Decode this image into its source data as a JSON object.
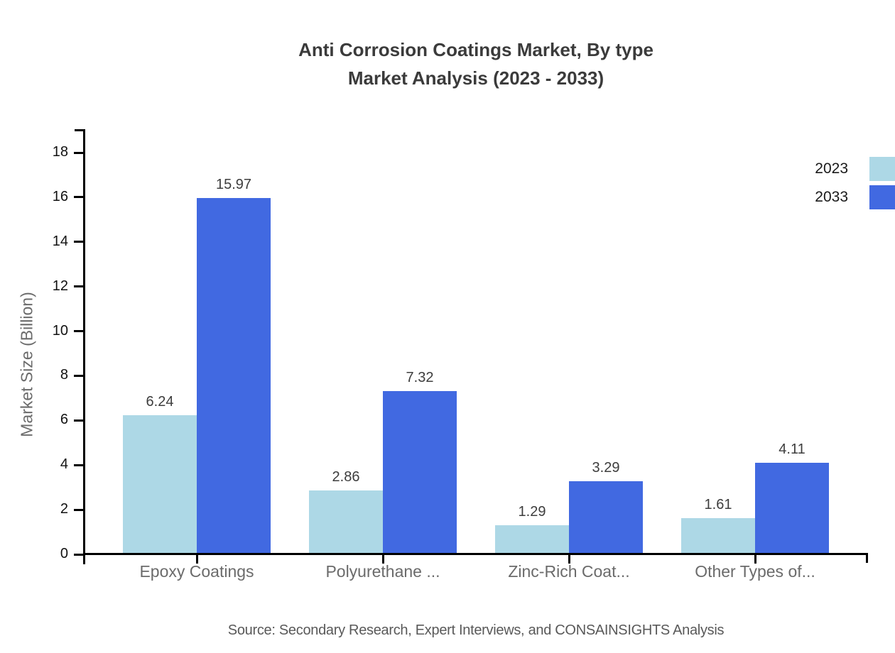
{
  "chart_data": {
    "type": "bar",
    "title_line1": "Anti Corrosion Coatings Market, By type",
    "title_line2": "Market Analysis (2023 - 2033)",
    "categories": [
      "Epoxy Coatings",
      "Polyurethane ...",
      "Zinc-Rich Coat...",
      "Other Types of..."
    ],
    "series": [
      {
        "name": "2023",
        "color": "#ADD8E6",
        "values": [
          6.24,
          2.86,
          1.29,
          1.61
        ]
      },
      {
        "name": "2033",
        "color": "#4169E1",
        "values": [
          15.97,
          7.32,
          3.29,
          4.11
        ]
      }
    ],
    "ylabel": "Market Size (Billion)",
    "xlabel": "",
    "ylim": [
      0,
      18
    ],
    "yticks": [
      0,
      2,
      4,
      6,
      8,
      10,
      12,
      14,
      16,
      18
    ],
    "grid": false,
    "legend_position": "top-right"
  },
  "colors": {
    "axis": "#000000",
    "title_text": "#3b3b3b",
    "tick_label": "#111111",
    "category_label": "#6b6b6b",
    "value_label": "#3d3d3d",
    "source_text": "#595959"
  },
  "source_note": "Source: Secondary Research, Expert Interviews, and CONSAINSIGHTS Analysis"
}
